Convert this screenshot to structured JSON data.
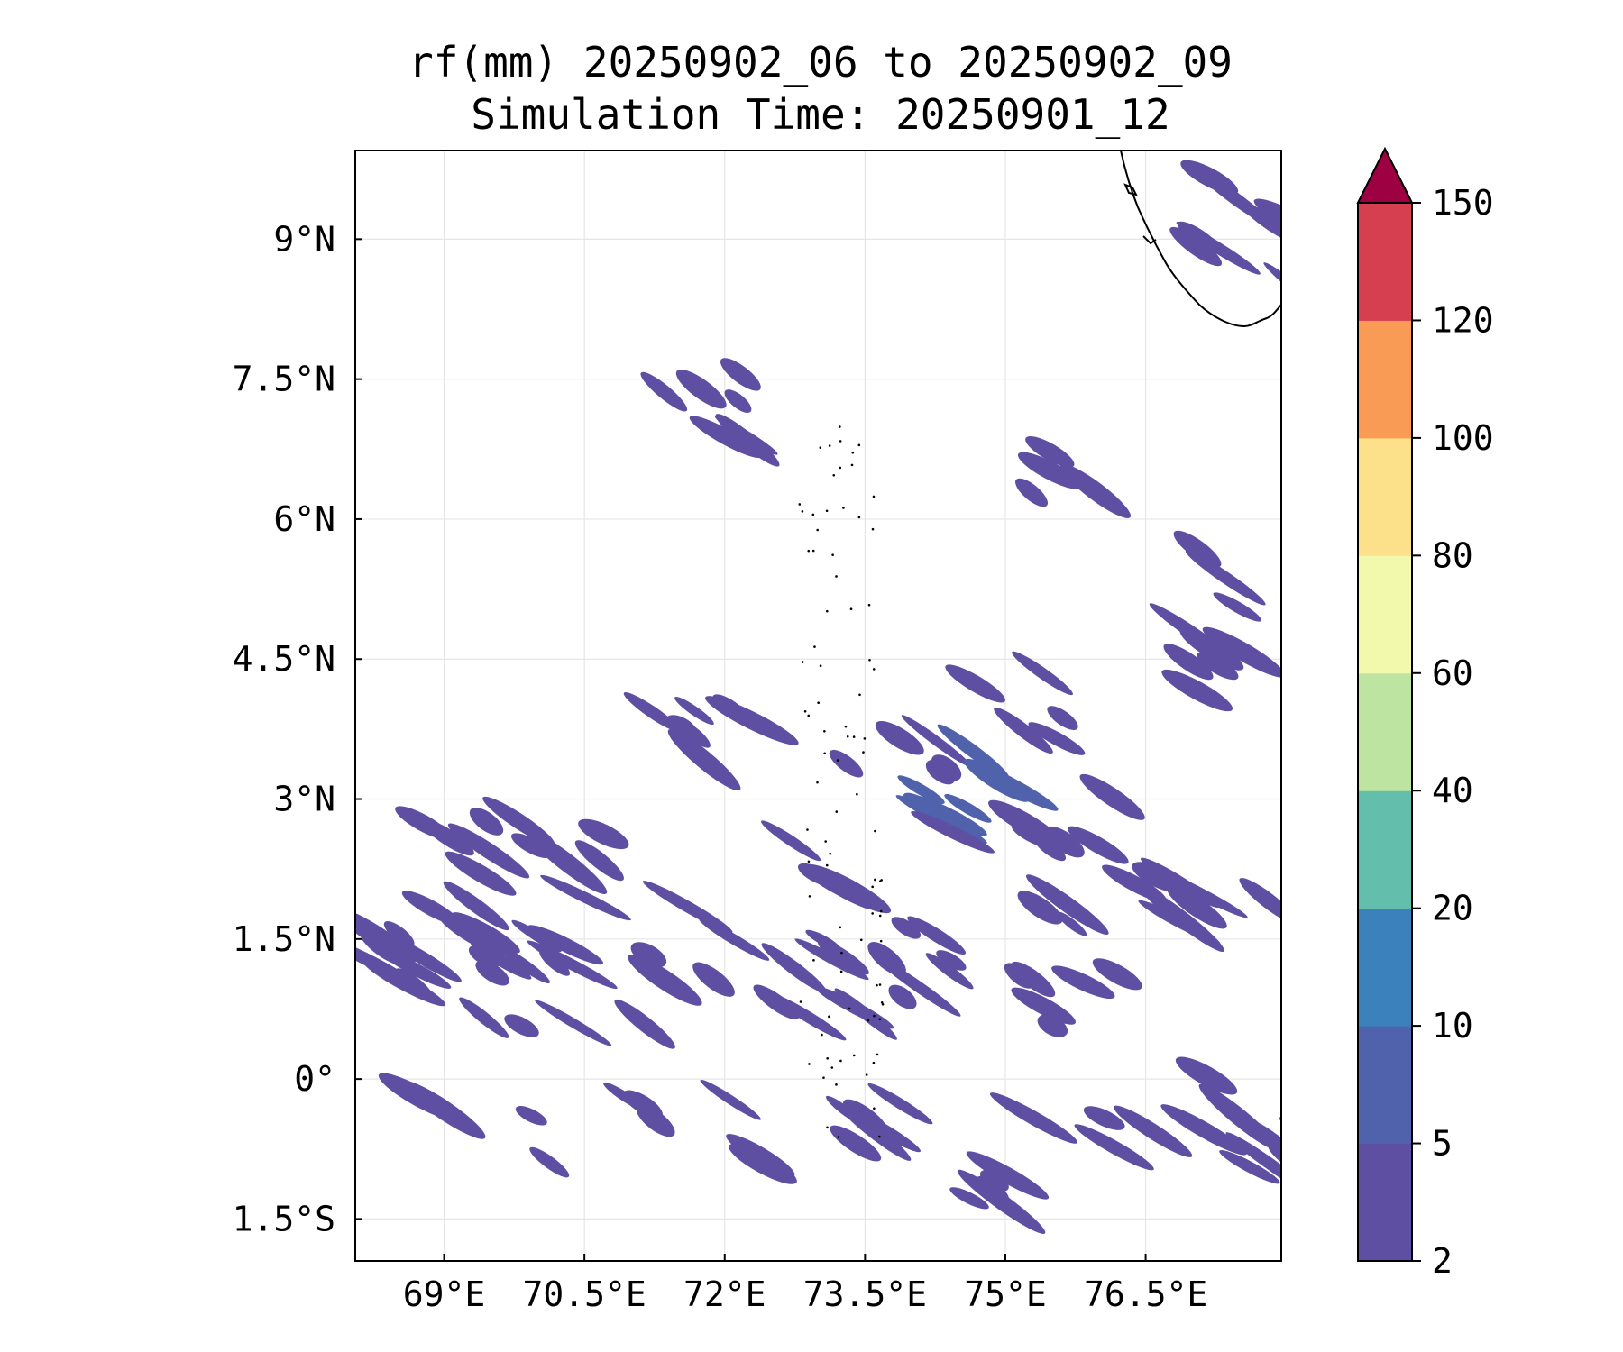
{
  "chart_data": {
    "type": "heatmap",
    "subtype": "filled-contour map",
    "title": "rf(mm) 20250902_06 to 20250902_09",
    "subtitle": "Simulation Time: 20250901_12",
    "xlabel": "",
    "ylabel": "",
    "xlim": [
      68.05,
      77.95
    ],
    "ylim": [
      -1.95,
      9.95
    ],
    "grid": true,
    "x_ticks": [
      {
        "value": 69,
        "label": "69°E"
      },
      {
        "value": 70.5,
        "label": "70.5°E"
      },
      {
        "value": 72,
        "label": "72°E"
      },
      {
        "value": 73.5,
        "label": "73.5°E"
      },
      {
        "value": 75,
        "label": "75°E"
      },
      {
        "value": 76.5,
        "label": "76.5°E"
      }
    ],
    "y_ticks": [
      {
        "value": 9,
        "label": "9°N"
      },
      {
        "value": 7.5,
        "label": "7.5°N"
      },
      {
        "value": 6,
        "label": "6°N"
      },
      {
        "value": 4.5,
        "label": "4.5°N"
      },
      {
        "value": 3,
        "label": "3°N"
      },
      {
        "value": 1.5,
        "label": "1.5°N"
      },
      {
        "value": 0,
        "label": "0°"
      },
      {
        "value": -1.5,
        "label": "1.5°S"
      }
    ],
    "colorbar": {
      "levels": [
        2,
        5,
        10,
        20,
        40,
        60,
        80,
        100,
        120,
        150
      ],
      "tick_labels": [
        "2",
        "5",
        "10",
        "20",
        "40",
        "60",
        "80",
        "100",
        "120",
        "150"
      ],
      "colors": [
        "#5e4fa2",
        "#4f62ab",
        "#3b82bd",
        "#63bfab",
        "#bde4a1",
        "#f2f9ac",
        "#fde08a",
        "#f99a55",
        "#d63f4f"
      ],
      "extend_color": "#9e0142",
      "extend": "max"
    },
    "rain_cells": [
      {
        "lon": 68.5,
        "lat": 1.5,
        "level": 2
      },
      {
        "lon": 69.0,
        "lat": 1.8,
        "level": 2
      },
      {
        "lon": 69.6,
        "lat": 1.6,
        "level": 2
      },
      {
        "lon": 70.2,
        "lat": 1.4,
        "level": 2
      },
      {
        "lon": 69.3,
        "lat": 2.4,
        "level": 2
      },
      {
        "lon": 70.4,
        "lat": 2.2,
        "level": 2
      },
      {
        "lon": 68.3,
        "lat": 1.2,
        "level": 2
      },
      {
        "lon": 69.8,
        "lat": 0.8,
        "level": 2
      },
      {
        "lon": 70.9,
        "lat": 1.0,
        "level": 2
      },
      {
        "lon": 71.6,
        "lat": 0.9,
        "level": 2
      },
      {
        "lon": 72.1,
        "lat": 1.5,
        "level": 2
      },
      {
        "lon": 72.6,
        "lat": 1.2,
        "level": 2
      },
      {
        "lon": 73.1,
        "lat": 1.4,
        "level": 2
      },
      {
        "lon": 73.2,
        "lat": 0.9,
        "level": 2
      },
      {
        "lon": 73.9,
        "lat": 1.0,
        "level": 2
      },
      {
        "lon": 74.5,
        "lat": 1.2,
        "level": 2
      },
      {
        "lon": 75.3,
        "lat": 0.9,
        "level": 2
      },
      {
        "lon": 75.8,
        "lat": 1.5,
        "level": 2
      },
      {
        "lon": 72.9,
        "lat": 2.3,
        "level": 2
      },
      {
        "lon": 73.8,
        "lat": 3.6,
        "level": 2
      },
      {
        "lon": 74.1,
        "lat": 3.1,
        "level": 5
      },
      {
        "lon": 74.6,
        "lat": 2.9,
        "level": 5
      },
      {
        "lon": 75.0,
        "lat": 2.4,
        "level": 2
      },
      {
        "lon": 75.8,
        "lat": 2.6,
        "level": 2
      },
      {
        "lon": 76.8,
        "lat": 2.1,
        "level": 2
      },
      {
        "lon": 77.3,
        "lat": 2.0,
        "level": 2
      },
      {
        "lon": 75.1,
        "lat": 4.0,
        "level": 2
      },
      {
        "lon": 76.9,
        "lat": 5.5,
        "level": 2
      },
      {
        "lon": 77.5,
        "lat": 4.9,
        "level": 2
      },
      {
        "lon": 77.3,
        "lat": 4.4,
        "level": 2
      },
      {
        "lon": 71.8,
        "lat": 7.2,
        "level": 2
      },
      {
        "lon": 72.4,
        "lat": 6.5,
        "level": 2
      },
      {
        "lon": 72.0,
        "lat": 3.7,
        "level": 2
      },
      {
        "lon": 71.2,
        "lat": 3.5,
        "level": 2
      },
      {
        "lon": 75.7,
        "lat": 6.4,
        "level": 2
      },
      {
        "lon": 77.5,
        "lat": 9.3,
        "level": 2
      },
      {
        "lon": 77.6,
        "lat": 8.8,
        "level": 2
      },
      {
        "lon": 76.6,
        "lat": -0.1,
        "level": 2
      },
      {
        "lon": 77.0,
        "lat": -0.8,
        "level": 2
      },
      {
        "lon": 75.6,
        "lat": -0.5,
        "level": 2
      },
      {
        "lon": 73.6,
        "lat": -0.4,
        "level": 2
      },
      {
        "lon": 72.6,
        "lat": -0.6,
        "level": 2
      },
      {
        "lon": 71.4,
        "lat": -0.1,
        "level": 2
      },
      {
        "lon": 70.2,
        "lat": -0.5,
        "level": 2
      },
      {
        "lon": 69.2,
        "lat": -0.4,
        "level": 2
      },
      {
        "lon": 74.5,
        "lat": -1.4,
        "level": 2
      },
      {
        "lon": 73.3,
        "lat": -0.2,
        "level": 2
      },
      {
        "lon": 77.7,
        "lat": -1.0,
        "level": 2
      }
    ]
  }
}
